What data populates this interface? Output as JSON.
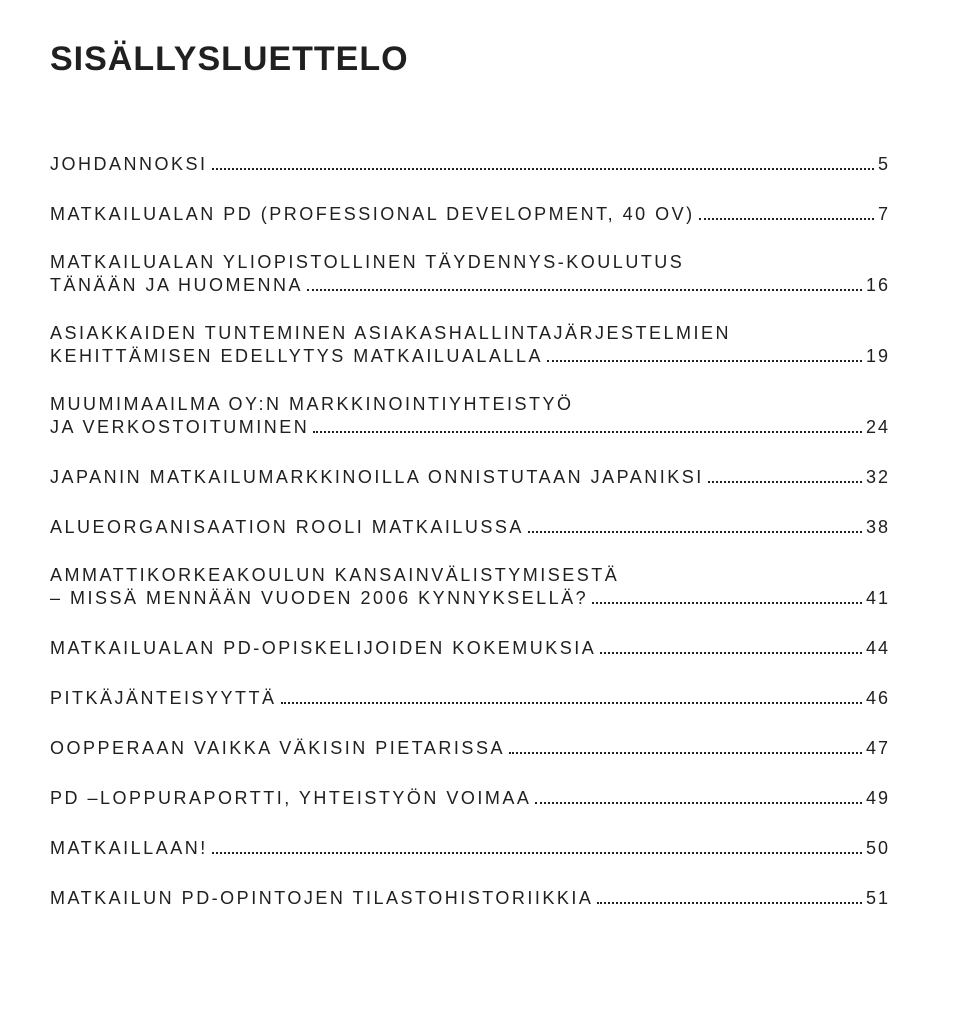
{
  "title": "SISÄLLYSLUETTELO",
  "typography": {
    "title_fontsize": 34,
    "entry_fontsize": 18,
    "text_color": "#202020",
    "background_color": "#ffffff",
    "leader_color": "#202020"
  },
  "entries": [
    {
      "lines": [
        "JOHDANNOKSI"
      ],
      "page": "5"
    },
    {
      "lines": [
        "MATKAILUALAN PD (PROFESSIONAL DEVELOPMENT, 40 OV)"
      ],
      "page": "7"
    },
    {
      "lines": [
        "MATKAILUALAN YLIOPISTOLLINEN TÄYDENNYS-KOULUTUS",
        "TÄNÄÄN JA HUOMENNA"
      ],
      "page": "16"
    },
    {
      "lines": [
        "ASIAKKAIDEN TUNTEMINEN ASIAKASHALLINTAJÄRJESTELMIEN",
        "KEHITTÄMISEN EDELLYTYS MATKAILUALALLA"
      ],
      "page": "19"
    },
    {
      "lines": [
        "MUUMIMAAILMA OY:N MARKKINOINTIYHTEISTYÖ",
        "JA VERKOSTOITUMINEN"
      ],
      "page": "24"
    },
    {
      "lines": [
        "JAPANIN MATKAILUMARKKINOILLA ONNISTUTAAN JAPANIKSI"
      ],
      "page": "32"
    },
    {
      "lines": [
        "ALUEORGANISAATION ROOLI MATKAILUSSA"
      ],
      "page": "38"
    },
    {
      "lines": [
        "AMMATTIKORKEAKOULUN KANSAINVÄLISTYMISESTÄ",
        "– MISSÄ MENNÄÄN VUODEN 2006 KYNNYKSELLÄ?"
      ],
      "page": "41"
    },
    {
      "lines": [
        "MATKAILUALAN PD-OPISKELIJOIDEN KOKEMUKSIA"
      ],
      "page": "44"
    },
    {
      "lines": [
        "PITKÄJÄNTEISYYTTÄ"
      ],
      "page": "46"
    },
    {
      "lines": [
        "OOPPERAAN VAIKKA VÄKISIN PIETARISSA"
      ],
      "page": "47"
    },
    {
      "lines": [
        "PD –LOPPURAPORTTI, YHTEISTYÖN VOIMAA"
      ],
      "page": "49"
    },
    {
      "lines": [
        "MATKAILLAAN!"
      ],
      "page": "50"
    },
    {
      "lines": [
        "MATKAILUN PD-OPINTOJEN TILASTOHISTORIIKKIA"
      ],
      "page": "51"
    }
  ]
}
